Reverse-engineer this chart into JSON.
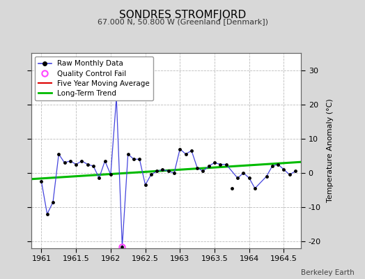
{
  "title": "SONDRES STROMFJORD",
  "subtitle": "67.000 N, 50.800 W (Greenland [Denmark])",
  "ylabel": "Temperature Anomaly (°C)",
  "credit": "Berkeley Earth",
  "xlim": [
    1960.85,
    1964.75
  ],
  "ylim": [
    -22,
    35
  ],
  "yticks": [
    -20,
    -10,
    0,
    10,
    20,
    30
  ],
  "xticks": [
    1961,
    1961.5,
    1962,
    1962.5,
    1963,
    1963.5,
    1964,
    1964.5
  ],
  "xtick_labels": [
    "1961",
    "1961.5",
    "1962",
    "1962.5",
    "1963",
    "1963.5",
    "1964",
    "1964.5"
  ],
  "bg_color": "#d8d8d8",
  "plot_bg_color": "#ffffff",
  "raw_x": [
    1961.0,
    1961.083,
    1961.167,
    1961.25,
    1961.333,
    1961.417,
    1961.5,
    1961.583,
    1961.667,
    1961.75,
    1961.833,
    1961.917,
    1962.0,
    1962.083,
    1962.167,
    1962.25,
    1962.333,
    1962.417,
    1962.5,
    1962.583,
    1962.667,
    1962.75,
    1962.833,
    1962.917,
    1963.0,
    1963.083,
    1963.167,
    1963.25,
    1963.333,
    1963.417,
    1963.5,
    1963.583,
    1963.667,
    1963.833,
    1963.917,
    1964.0,
    1964.083,
    1964.25,
    1964.333,
    1964.417,
    1964.5,
    1964.583,
    1964.667
  ],
  "raw_y": [
    -2.5,
    -12.0,
    -8.5,
    5.5,
    3.0,
    3.5,
    2.5,
    3.5,
    2.5,
    2.0,
    -1.5,
    3.5,
    -0.5,
    22.0,
    -21.5,
    5.5,
    4.0,
    4.0,
    -3.5,
    -0.5,
    0.5,
    1.0,
    0.5,
    0.0,
    7.0,
    5.5,
    6.5,
    1.5,
    0.5,
    2.0,
    3.0,
    2.5,
    2.5,
    -1.5,
    0.0,
    -1.5,
    -4.5,
    -1.0,
    2.0,
    2.5,
    1.0,
    -0.5,
    0.5
  ],
  "isolated_x": [
    1963.75
  ],
  "isolated_y": [
    -4.5
  ],
  "qc_fail_x": [
    1962.167
  ],
  "qc_fail_y": [
    -21.5
  ],
  "trend_x": [
    1960.85,
    1964.75
  ],
  "trend_y": [
    -1.8,
    3.2
  ],
  "raw_line_color": "#4444dd",
  "raw_marker_color": "#000000",
  "qc_color": "#ff44ff",
  "trend_color": "#00bb00",
  "mavg_color": "#dd0000",
  "legend_bg": "#ffffff",
  "grid_color": "#bbbbbb",
  "grid_style": "--"
}
